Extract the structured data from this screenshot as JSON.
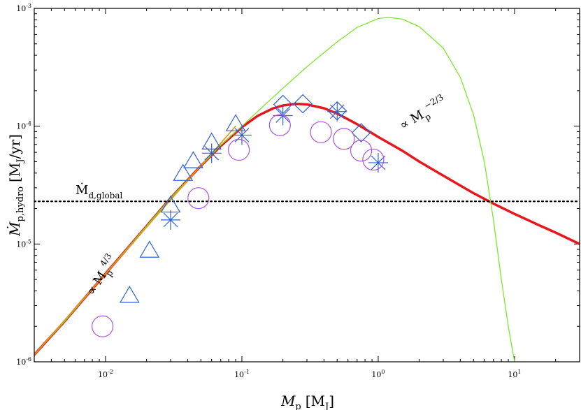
{
  "chart_data": {
    "type": "scatter",
    "scale": "log-log",
    "xlabel": {
      "var": "M",
      "sub": "p",
      "unit": "[M",
      "unit_sub": "J",
      "unit_close": "]"
    },
    "ylabel": {
      "var": "Ṁ",
      "sub": "p,hydro",
      "unit": "[M",
      "unit_sub": "J",
      "unit_close": "/yr]"
    },
    "xlim": [
      0.003,
      30
    ],
    "ylim": [
      1e-06,
      0.001
    ],
    "x_ticks": [
      {
        "value": 0.01,
        "base": "10",
        "exp": "-2"
      },
      {
        "value": 0.1,
        "base": "10",
        "exp": "-1"
      },
      {
        "value": 1,
        "base": "10",
        "exp": "0"
      },
      {
        "value": 10,
        "base": "10",
        "exp": "1"
      }
    ],
    "y_ticks": [
      {
        "value": 1e-06,
        "base": "10",
        "exp": "-6"
      },
      {
        "value": 1e-05,
        "base": "10",
        "exp": "-5"
      },
      {
        "value": 0.0001,
        "base": "10",
        "exp": "-4"
      },
      {
        "value": 0.001,
        "base": "10",
        "exp": "-3"
      }
    ],
    "colors": {
      "red_curve": "#e8171d",
      "green_curve": "#7be82b",
      "orange_line": "#d4a017",
      "blue_markers": "#2f5fd8",
      "circle_markers": "#a855d8",
      "global_line": "#000000"
    },
    "reference_lines": {
      "global_rate": {
        "y": 2.3e-05,
        "label_var": "Ṁ",
        "label_sub": "d,global"
      }
    },
    "annotations": {
      "low_mass_slope": {
        "prefix": "∝ M",
        "sub": "p",
        "sup": "4/3"
      },
      "high_mass_slope": {
        "prefix": "∝ M",
        "sub": "p",
        "sup": "−2/3"
      }
    },
    "series": [
      {
        "name": "red model curve",
        "kind": "line",
        "x": [
          0.003,
          0.005,
          0.01,
          0.02,
          0.03,
          0.05,
          0.07,
          0.1,
          0.13,
          0.17,
          0.2,
          0.25,
          0.3,
          0.4,
          0.5,
          0.7,
          1.0,
          1.5,
          2,
          3,
          5,
          7,
          10,
          15,
          20,
          30
        ],
        "y": [
          1.15e-06,
          2.2e-06,
          5.6e-06,
          1.42e-05,
          2.45e-05,
          4.6e-05,
          6.8e-05,
          9.8e-05,
          0.000122,
          0.000142,
          0.00015,
          0.000155,
          0.000153,
          0.000142,
          0.000128,
          0.000104,
          8.1e-05,
          6.2e-05,
          5e-05,
          3.8e-05,
          2.7e-05,
          2.2e-05,
          1.8e-05,
          1.45e-05,
          1.25e-05,
          1e-05
        ]
      },
      {
        "name": "green model curve",
        "kind": "line",
        "x": [
          0.003,
          0.005,
          0.01,
          0.02,
          0.03,
          0.05,
          0.07,
          0.1,
          0.15,
          0.2,
          0.3,
          0.5,
          0.7,
          1.0,
          1.2,
          1.5,
          2,
          3,
          4,
          5,
          6,
          7,
          8,
          9,
          10
        ],
        "y": [
          1.15e-06,
          2.2e-06,
          5.6e-06,
          1.42e-05,
          2.45e-05,
          4.6e-05,
          6.9e-05,
          0.0001,
          0.000155,
          0.00021,
          0.00032,
          0.00052,
          0.00069,
          0.00082,
          0.00084,
          0.00081,
          0.0007,
          0.00046,
          0.00026,
          0.000125,
          5e-05,
          1.6e-05,
          5e-06,
          2e-06,
          1e-06
        ]
      },
      {
        "name": "orange power-law line",
        "kind": "line",
        "x": [
          0.003,
          0.09
        ],
        "y": [
          1.15e-06,
          0.0001
        ]
      },
      {
        "name": "global accretion rate",
        "kind": "dotted-hline",
        "x": [
          0.003,
          30
        ],
        "y": [
          2.3e-05,
          2.3e-05
        ]
      },
      {
        "name": "triangles",
        "kind": "marker",
        "marker": "triangle",
        "x": [
          0.015,
          0.021,
          0.03,
          0.037,
          0.044,
          0.06,
          0.09
        ],
        "y": [
          3.6e-06,
          8.7e-06,
          2.1e-05,
          3.9e-05,
          5e-05,
          7.2e-05,
          0.000103
        ]
      },
      {
        "name": "diamonds",
        "kind": "marker",
        "marker": "diamond",
        "x": [
          0.2,
          0.28,
          0.5,
          0.75
        ],
        "y": [
          0.000153,
          0.000155,
          0.000135,
          8.8e-05
        ]
      },
      {
        "name": "asterisks",
        "kind": "marker",
        "marker": "asterisk",
        "x": [
          0.03,
          0.06,
          0.1,
          0.2,
          0.5,
          1.0
        ],
        "y": [
          1.6e-05,
          5.9e-05,
          8.4e-05,
          0.000123,
          0.000133,
          4.9e-05
        ]
      },
      {
        "name": "circles",
        "kind": "marker",
        "marker": "circle",
        "x": [
          0.0095,
          0.048,
          0.095,
          0.19,
          0.38,
          0.56,
          0.75,
          0.92
        ],
        "y": [
          2e-06,
          2.45e-05,
          6.3e-05,
          0.000102,
          8.9e-05,
          7.8e-05,
          6.2e-05,
          5.2e-05
        ]
      }
    ]
  }
}
